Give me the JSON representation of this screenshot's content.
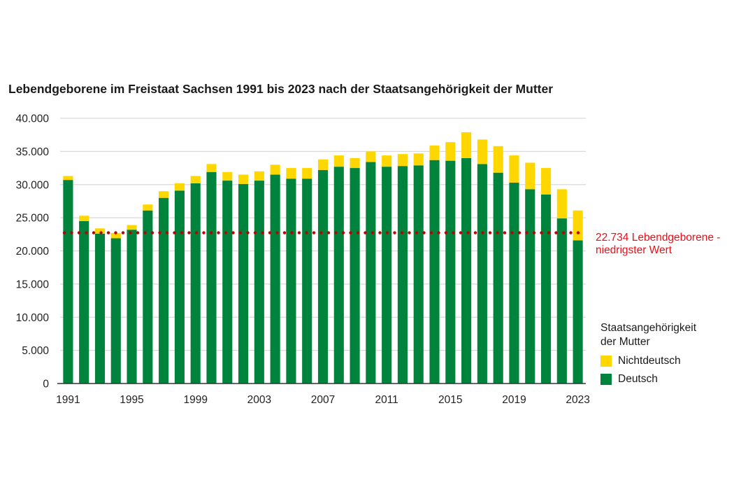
{
  "chart_data": {
    "type": "bar",
    "stacked": true,
    "title": "Lebendgeborene im Freistaat Sachsen 1991 bis 2023 nach der Staatsangehörigkeit der Mutter",
    "xlabel": "",
    "ylabel": "",
    "ylim": [
      0,
      40000
    ],
    "grid": true,
    "yticks": [
      0,
      5000,
      10000,
      15000,
      20000,
      25000,
      30000,
      35000,
      40000
    ],
    "ytick_labels": [
      "0",
      "5.000",
      "10.000",
      "15.000",
      "20.000",
      "25.000",
      "30.000",
      "35.000",
      "40.000"
    ],
    "categories": [
      1991,
      1992,
      1993,
      1994,
      1995,
      1996,
      1997,
      1998,
      1999,
      2000,
      2001,
      2002,
      2003,
      2004,
      2005,
      2006,
      2007,
      2008,
      2009,
      2010,
      2011,
      2012,
      2013,
      2014,
      2015,
      2016,
      2017,
      2018,
      2019,
      2020,
      2021,
      2022,
      2023
    ],
    "xtick_labels": [
      "1991",
      "1995",
      "1999",
      "2003",
      "2007",
      "2011",
      "2015",
      "2019",
      "2023"
    ],
    "series": [
      {
        "name": "Deutsch",
        "color": "#00843d",
        "values": [
          30700,
          24500,
          22600,
          21900,
          23200,
          26100,
          28000,
          29100,
          30200,
          31900,
          30600,
          30100,
          30600,
          31500,
          30900,
          30900,
          32200,
          32700,
          32500,
          33400,
          32700,
          32800,
          32900,
          33700,
          33600,
          34000,
          33100,
          31800,
          30300,
          29300,
          28500,
          24900,
          21600
        ]
      },
      {
        "name": "Nichtdeutsch",
        "color": "#ffd700",
        "values": [
          600,
          800,
          800,
          800,
          700,
          900,
          1000,
          1100,
          1100,
          1200,
          1300,
          1400,
          1400,
          1500,
          1600,
          1600,
          1600,
          1700,
          1500,
          1600,
          1700,
          1800,
          1800,
          2200,
          2800,
          3900,
          3700,
          4000,
          4100,
          4000,
          4000,
          4400,
          4500
        ]
      }
    ],
    "reference_line": {
      "value": 22734,
      "color": "#c00000",
      "style": "dotted",
      "label_line1": "22.734 Lebendgeborene -",
      "label_line2": "niedrigster Wert",
      "label_color": "#e8101a"
    },
    "legend": {
      "title_line1": "Staatsangehörigkeit",
      "title_line2": "der Mutter",
      "position": "right",
      "items": [
        {
          "label": "Nichtdeutsch",
          "color": "#ffd700"
        },
        {
          "label": "Deutsch",
          "color": "#00843d"
        }
      ]
    }
  }
}
